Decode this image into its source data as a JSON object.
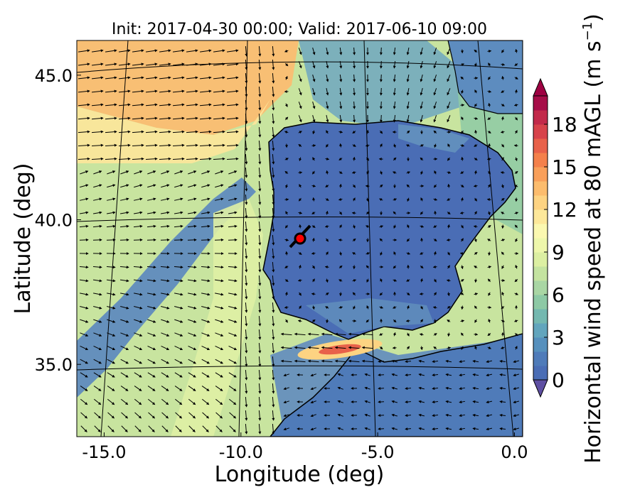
{
  "title": "Init: 2017-04-30 00:00; Valid: 2017-06-10 09:00",
  "xaxis": {
    "label": "Longitude (deg)",
    "ticks": [
      {
        "value": -15,
        "label": "-15.0"
      },
      {
        "value": -10,
        "label": "-10.0"
      },
      {
        "value": -5,
        "label": "-5.0"
      },
      {
        "value": 0,
        "label": "0.0"
      }
    ],
    "range": [
      -16,
      0.3
    ]
  },
  "yaxis": {
    "label": "Latitude (deg)",
    "ticks": [
      {
        "value": 35,
        "label": "35.0"
      },
      {
        "value": 40,
        "label": "40.0"
      },
      {
        "value": 45,
        "label": "45.0"
      }
    ],
    "range": [
      32.5,
      46.2
    ]
  },
  "colorbar": {
    "label_main": "Horizontal wind speed at 80 mAGL (m s",
    "label_exp": "−1",
    "label_close": ")",
    "min": 0,
    "max": 20,
    "extend": "both",
    "ticks": [
      {
        "value": 0,
        "label": "0"
      },
      {
        "value": 3,
        "label": "3"
      },
      {
        "value": 6,
        "label": "6"
      },
      {
        "value": 9,
        "label": "9"
      },
      {
        "value": 12,
        "label": "12"
      },
      {
        "value": 15,
        "label": "15"
      },
      {
        "value": 18,
        "label": "18"
      }
    ],
    "colors": [
      "#4a6db5",
      "#4f7bb9",
      "#5690bd",
      "#62a5bd",
      "#74b8b0",
      "#8dc9a5",
      "#a9d6a4",
      "#c4e3a0",
      "#dcefa2",
      "#eef7ab",
      "#fbf8b0",
      "#fde89a",
      "#fdd382",
      "#fcbc6d",
      "#f99f5a",
      "#f4804b",
      "#e8614a",
      "#d7434b",
      "#c22a4a",
      "#a60d48"
    ],
    "under_color": "#5e4fa2",
    "over_color": "#9e0142"
  },
  "marker": {
    "lon": -7.6,
    "lat": 39.4,
    "color": "#ff0000",
    "edge": "#000000"
  },
  "map_colors": {
    "coast": "#000000",
    "grid": "#000000",
    "arrows": "#000000"
  }
}
